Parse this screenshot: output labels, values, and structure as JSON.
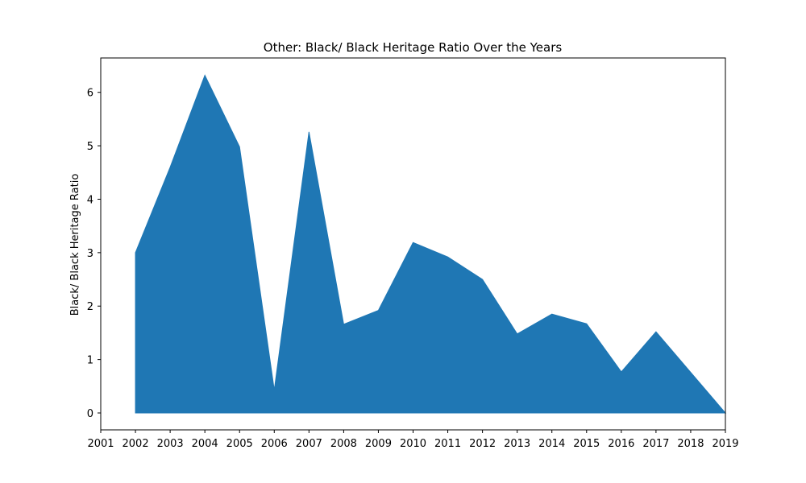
{
  "chart_data": {
    "type": "area",
    "title": "Other: Black/ Black Heritage Ratio Over the Years",
    "xlabel": "",
    "ylabel": "Black/ Black Heritage Ratio",
    "x": [
      2002,
      2003,
      2004,
      2005,
      2006,
      2007,
      2008,
      2009,
      2010,
      2011,
      2012,
      2013,
      2014,
      2015,
      2016,
      2017,
      2018,
      2019
    ],
    "series": [
      {
        "values": [
          3.0,
          4.6,
          6.32,
          4.98,
          0.43,
          5.26,
          1.66,
          1.92,
          3.19,
          2.92,
          2.5,
          1.48,
          1.85,
          1.67,
          0.77,
          1.52,
          0.76,
          0.0
        ],
        "color": "#1f77b4"
      }
    ],
    "xticks": [
      "2001",
      "2002",
      "2003",
      "2004",
      "2005",
      "2006",
      "2007",
      "2008",
      "2009",
      "2010",
      "2011",
      "2012",
      "2013",
      "2014",
      "2015",
      "2016",
      "2017",
      "2018",
      "2019"
    ],
    "yticks": [
      "0",
      "1",
      "2",
      "3",
      "4",
      "5",
      "6"
    ],
    "xlim": [
      2001,
      2019
    ],
    "ylim": [
      -0.3163,
      6.6434
    ],
    "grid": false,
    "legend": "none"
  }
}
